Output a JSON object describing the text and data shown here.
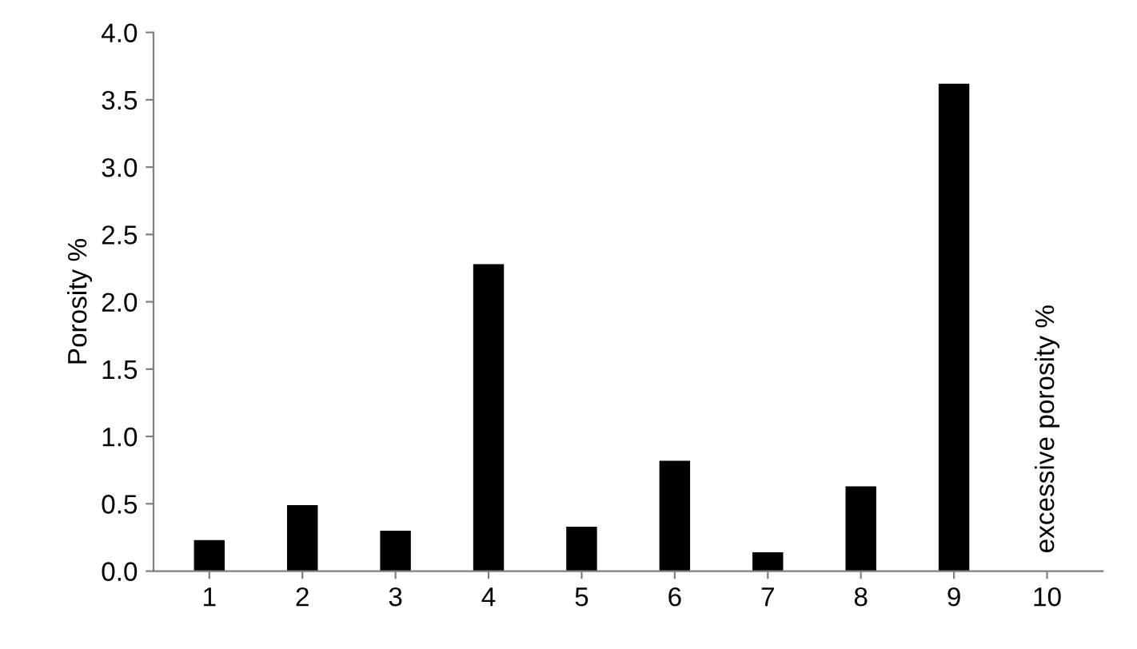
{
  "chart_data": {
    "type": "bar",
    "ylabel": "Porosity %",
    "categories": [
      "1",
      "2",
      "3",
      "4",
      "5",
      "6",
      "7",
      "8",
      "9",
      "10"
    ],
    "values": [
      0.23,
      0.49,
      0.3,
      2.28,
      0.33,
      0.82,
      0.14,
      0.63,
      3.62,
      null
    ],
    "color": "#000000",
    "ylim": [
      0,
      4.0
    ],
    "yticks": [
      {
        "value": 0,
        "label": "0.0"
      },
      {
        "value": 0.5,
        "label": "0.5"
      },
      {
        "value": 1.0,
        "label": "1.0"
      },
      {
        "value": 1.5,
        "label": "1.5"
      },
      {
        "value": 2.0,
        "label": "2.0"
      },
      {
        "value": 2.5,
        "label": "2.5"
      },
      {
        "value": 3.0,
        "label": "3.0"
      },
      {
        "value": 3.5,
        "label": "3.5"
      },
      {
        "value": 4.0,
        "label": "4.0"
      }
    ],
    "annotations": [
      "excessive porosity %"
    ],
    "grid": false,
    "legend": false
  }
}
